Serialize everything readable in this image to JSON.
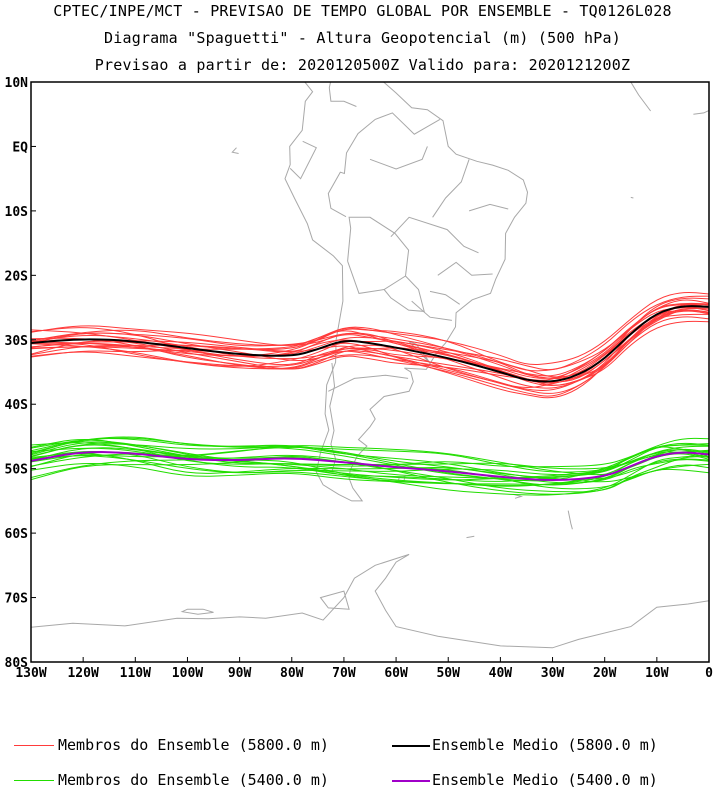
{
  "header": {
    "line1": "CPTEC/INPE/MCT - PREVISAO DE TEMPO GLOBAL POR ENSEMBLE - TQ0126L028",
    "line2": "Diagrama \"Spaguetti\" - Altura Geopotencial (m) (500 hPa)",
    "line3": "Previsao a partir de: 2020120500Z  Valido para: 2020121200Z"
  },
  "axes": {
    "lat_labels": [
      "10N",
      "EQ",
      "10S",
      "20S",
      "30S",
      "40S",
      "50S",
      "60S",
      "70S",
      "80S"
    ],
    "lat_values": [
      10,
      0,
      -10,
      -20,
      -30,
      -40,
      -50,
      -60,
      -70,
      -80
    ],
    "lon_labels": [
      "130W",
      "120W",
      "110W",
      "100W",
      "90W",
      "80W",
      "70W",
      "60W",
      "50W",
      "40W",
      "30W",
      "20W",
      "10W",
      "0"
    ],
    "lon_values": [
      -130,
      -120,
      -110,
      -100,
      -90,
      -80,
      -70,
      -60,
      -50,
      -40,
      -30,
      -20,
      -10,
      0
    ],
    "lon_range": [
      -130,
      0
    ],
    "lat_range": [
      -80,
      10
    ]
  },
  "colors": {
    "member_5800": "#ff3b3b",
    "mean_5800": "#000000",
    "member_5400": "#22dd00",
    "mean_5400": "#a000c8",
    "coast": "#a8a8a8"
  },
  "legend": {
    "members_5800": "Membros do Ensemble (5800.0 m)",
    "mean_5800": "Ensemble Medio (5800.0 m)",
    "members_5400": "Membros do Ensemble (5400.0 m)",
    "mean_5400": "Ensemble Medio (5400.0 m)"
  },
  "chart_data": {
    "type": "line",
    "series": [
      {
        "name": "Ensemble Medio (5800.0 m)",
        "lon": [
          -130,
          -120,
          -110,
          -100,
          -90,
          -80,
          -75,
          -70,
          -65,
          -60,
          -50,
          -40,
          -35,
          -30,
          -25,
          -20,
          -15,
          -10,
          -5,
          0
        ],
        "lat": [
          -30.5,
          -29.8,
          -30.2,
          -31.3,
          -32.3,
          -32.6,
          -31.5,
          -30.0,
          -30.5,
          -31.2,
          -32.8,
          -35.0,
          -36.3,
          -36.6,
          -35.5,
          -33.0,
          -29.0,
          -25.8,
          -24.7,
          -24.9
        ]
      },
      {
        "name": "Ensemble Medio (5400.0 m)",
        "lon": [
          -130,
          -120,
          -110,
          -100,
          -90,
          -80,
          -70,
          -60,
          -50,
          -40,
          -30,
          -20,
          -15,
          -10,
          -5,
          0
        ],
        "lat": [
          -48.8,
          -47.3,
          -47.6,
          -48.6,
          -48.7,
          -48.3,
          -49.0,
          -49.8,
          -50.4,
          -51.3,
          -51.9,
          -51.3,
          -49.6,
          -48.0,
          -47.4,
          -47.8
        ]
      }
    ]
  }
}
